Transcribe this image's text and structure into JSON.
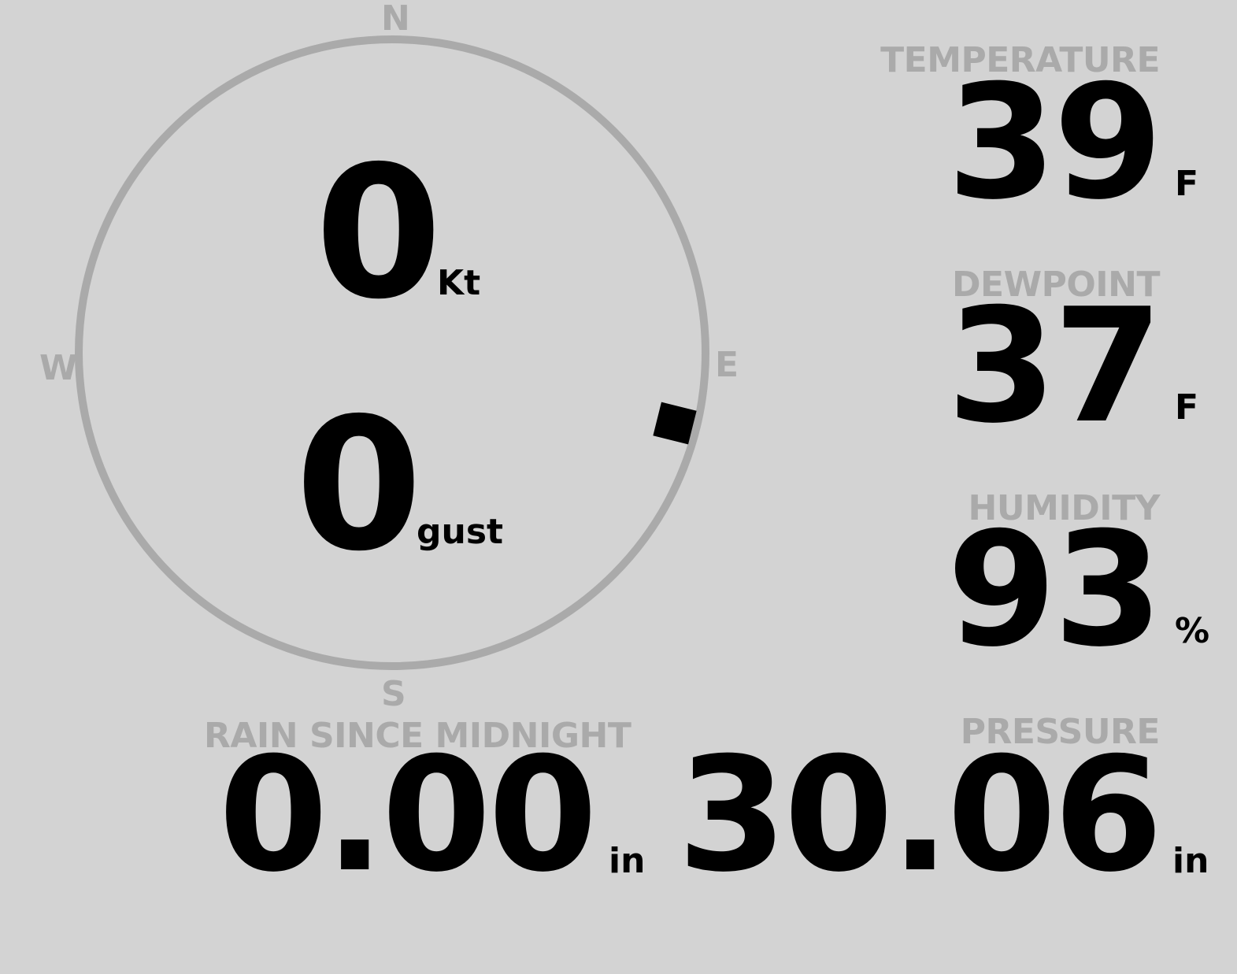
{
  "wind": {
    "compass": {
      "north": "N",
      "east": "E",
      "south": "S",
      "west": "W"
    },
    "direction_deg": 104,
    "speed": "0",
    "speed_unit": "Kt",
    "gust": "0",
    "gust_unit": "gust"
  },
  "temperature": {
    "label": "TEMPERATURE",
    "value": "39",
    "unit": "F"
  },
  "dewpoint": {
    "label": "DEWPOINT",
    "value": "37",
    "unit": "F"
  },
  "humidity": {
    "label": "HUMIDITY",
    "value": "93",
    "unit": "%"
  },
  "rain": {
    "label": "RAIN SINCE MIDNIGHT",
    "value": "0.00",
    "unit": "in"
  },
  "pressure": {
    "label": "PRESSURE",
    "value": "30.06",
    "unit": "in"
  },
  "colors": {
    "background": "#d3d3d3",
    "label": "#aaaaaa",
    "value": "#000000",
    "ring": "#aaaaaa"
  }
}
